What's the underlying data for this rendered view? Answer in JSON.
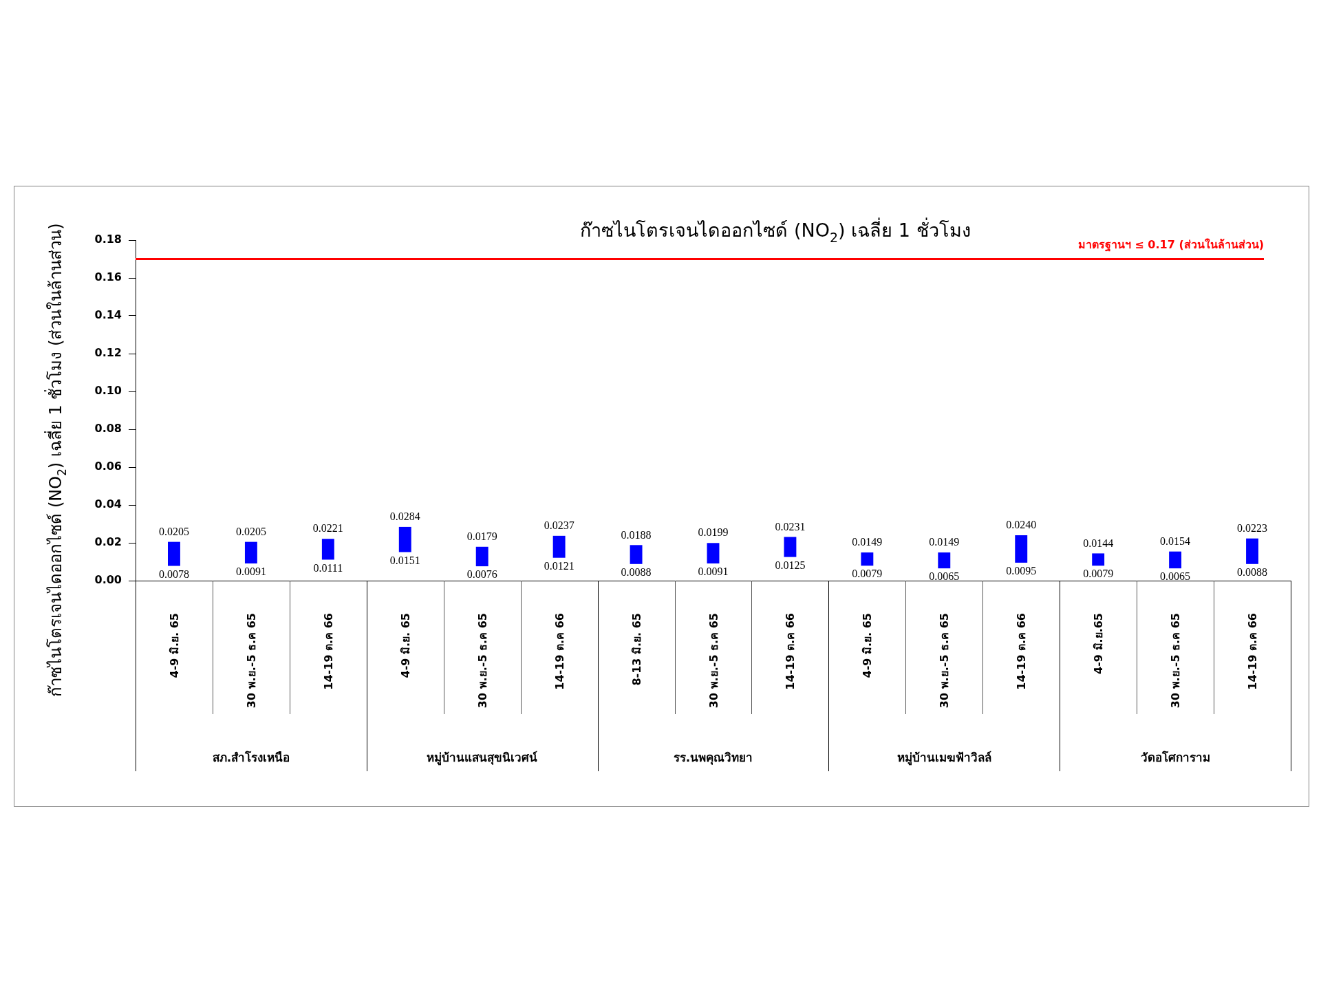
{
  "chart_data": {
    "type": "bar",
    "title": "ก๊าซไนโตรเจนไดออกไซด์ (NO$_{2}$) เฉลี่ย 1 ชั่วโมง",
    "ylabel": "ก๊าซไนโตรเจนไดออกไซด์ (NO$_{2}$) เฉลี่ย 1 ชั่วโมง (ส่วนในล้านส่วน)",
    "categories": [
      "4-9 มิ.ย. 65",
      "30 พ.ย.-5 ธ.ค 65",
      "14-19 ต.ค 66",
      "4-9 มิ.ย. 65",
      "30 พ.ย.-5 ธ.ค 65",
      "14-19 ต.ค 66",
      "8-13 มิ.ย. 65",
      "30 พ.ย.-5 ธ.ค 65",
      "14-19 ต.ค 66",
      "4-9 มิ.ย. 65",
      "30 พ.ย.-5 ธ.ค 65",
      "14-19 ต.ค 66",
      "4-9 มิ.ย.65",
      "30 พ.ย.-5 ธ.ค 65",
      "14-19 ต.ค 66"
    ],
    "color": "#0000ff",
    "base": [
      0.0078,
      0.0091,
      0.0111,
      0.0151,
      0.0076,
      0.0121,
      0.0088,
      0.0091,
      0.0125,
      0.0079,
      0.0065,
      0.0095,
      0.0079,
      0.0065,
      0.0088
    ],
    "values": [
      0.0127,
      0.0114,
      0.011,
      0.0133,
      0.0103,
      0.0116,
      0.01,
      0.0108,
      0.0106,
      0.007,
      0.0084,
      0.0145,
      0.0065,
      0.0089,
      0.0135
    ],
    "ylim": [
      0,
      0.18
    ],
    "yticks": [
      {
        "value": 0,
        "label": "0.00"
      },
      0.02,
      0.04,
      0.06,
      0.08,
      {
        "value": 0.1,
        "label": "0.10"
      },
      0.12,
      0.14,
      0.16,
      0.18
    ],
    "ref_lines": [
      {
        "axis": "y",
        "value": 0.17,
        "label": "มาตรฐานฯ ≤ 0.17 (ส่วนในล้านส่วน)",
        "color": "#ff0000"
      }
    ],
    "annotations": [
      "สภ.สำโรงเหนือ",
      "หมู่บ้านแสนสุขนิเวศน์",
      "รร.นพคุณวิทยา",
      "หมู่บ้านเมฆฟ้าวิลล์",
      "วัดอโศการาม",
      {
        "text": "0.0205",
        "y": 0.0205
      },
      {
        "text": "0.0078",
        "y": 0.0078
      },
      {
        "text": "0.0205",
        "y": 0.0205
      },
      {
        "text": "0.0091",
        "y": 0.0091
      },
      {
        "text": "0.0221",
        "y": 0.0221
      },
      {
        "text": "0.0111",
        "y": 0.0111
      },
      {
        "text": "0.0284",
        "y": 0.0284
      },
      {
        "text": "0.0151",
        "y": 0.0151
      },
      {
        "text": "0.0179",
        "y": 0.0179
      },
      {
        "text": "0.0076",
        "y": 0.0076
      },
      {
        "text": "0.0237",
        "y": 0.0237
      },
      {
        "text": "0.0121",
        "y": 0.0121
      },
      {
        "text": "0.0188",
        "y": 0.0188
      },
      {
        "text": "0.0088",
        "y": 0.0088
      },
      {
        "text": "0.0199",
        "y": 0.0199
      },
      {
        "text": "0.0091",
        "y": 0.0091
      },
      {
        "text": "0.0231",
        "y": 0.0231
      },
      {
        "text": "0.0125",
        "y": 0.0125
      },
      {
        "text": "0.0149",
        "y": 0.0149
      },
      {
        "text": "0.0079",
        "y": 0.0079
      },
      {
        "text": "0.0149",
        "y": 0.0149
      },
      {
        "text": "0.0065",
        "y": 0.0065
      },
      {
        "text": "0.0240",
        "y": 0.024
      },
      {
        "text": "0.0095",
        "y": 0.0095
      },
      {
        "text": "0.0144",
        "y": 0.0144
      },
      {
        "text": "0.0079",
        "y": 0.0079
      },
      {
        "text": "0.0154",
        "y": 0.0154
      },
      {
        "text": "0.0065",
        "y": 0.0065
      },
      {
        "text": "0.0223",
        "y": 0.0223
      },
      {
        "text": "0.0088",
        "y": 0.0088
      }
    ]
  }
}
